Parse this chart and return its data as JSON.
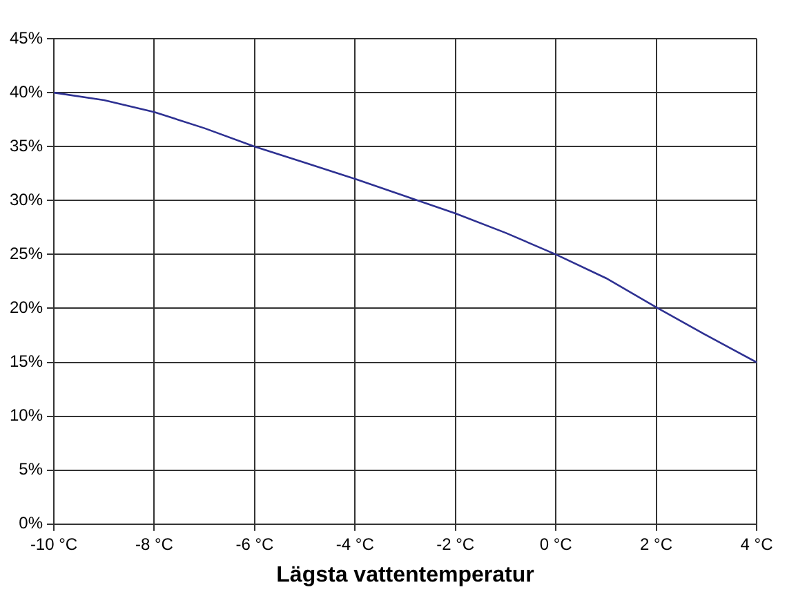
{
  "chart_data": {
    "type": "line",
    "xlabel": "Lägsta vattentemperatur",
    "x": [
      -10,
      -9,
      -8,
      -7,
      -6,
      -5,
      -4,
      -3,
      -2,
      -1,
      0,
      1,
      2,
      3,
      4
    ],
    "series": [
      {
        "color": "#2e3192",
        "values": [
          40,
          39.3,
          38.2,
          36.7,
          35,
          33.5,
          32,
          30.4,
          28.8,
          27,
          25,
          22.8,
          20.1,
          17.5,
          15
        ]
      }
    ],
    "xlim": [
      -10,
      4
    ],
    "xticks": [
      {
        "value": -10,
        "label": "-10 °C"
      },
      {
        "value": -8,
        "label": "-8 °C"
      },
      {
        "value": -6,
        "label": "-6 °C"
      },
      {
        "value": -4,
        "label": "-4 °C"
      },
      {
        "value": -2,
        "label": "-2 °C"
      },
      {
        "value": 0,
        "label": "0 °C"
      },
      {
        "value": 2,
        "label": "2 °C"
      },
      {
        "value": 4,
        "label": "4 °C"
      }
    ],
    "ylim": [
      0,
      45
    ],
    "yticks": [
      {
        "value": 0,
        "label": "0%"
      },
      {
        "value": 5,
        "label": "5%"
      },
      {
        "value": 10,
        "label": "10%"
      },
      {
        "value": 15,
        "label": "15%"
      },
      {
        "value": 20,
        "label": "20%"
      },
      {
        "value": 25,
        "label": "25%"
      },
      {
        "value": 30,
        "label": "30%"
      },
      {
        "value": 35,
        "label": "35%"
      },
      {
        "value": 40,
        "label": "40%"
      },
      {
        "value": 45,
        "label": "45%"
      }
    ],
    "grid": true,
    "legend": false,
    "marker": "none",
    "line_style": "solid"
  }
}
